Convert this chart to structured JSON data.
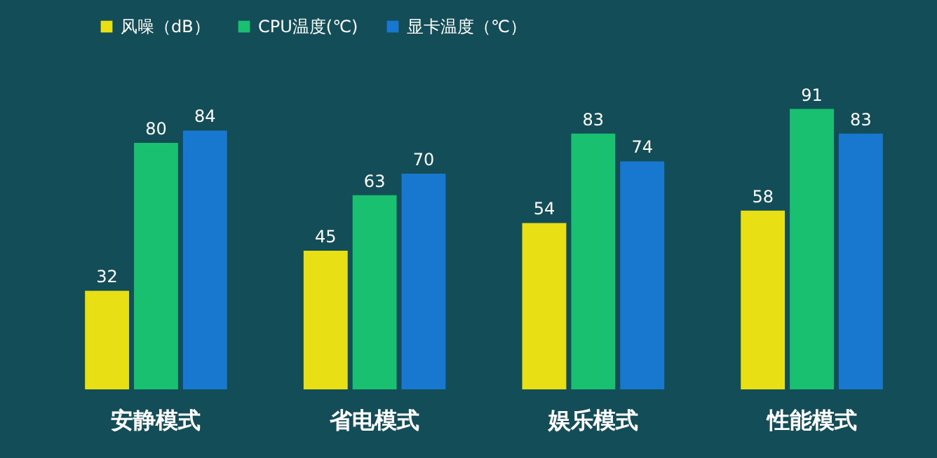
{
  "chart_data": {
    "type": "bar",
    "categories": [
      "安静模式",
      "省电模式",
      "娱乐模式",
      "性能模式"
    ],
    "series": [
      {
        "name": "风噪（dB）",
        "color": "#e8e014",
        "values": [
          32,
          45,
          54,
          58
        ]
      },
      {
        "name": "CPU温度(℃)",
        "color": "#18c070",
        "values": [
          80,
          63,
          83,
          91
        ]
      },
      {
        "name": "显卡温度（℃）",
        "color": "#1878d0",
        "values": [
          84,
          70,
          74,
          83
        ]
      }
    ],
    "data_labels": true,
    "legend": "top left"
  }
}
